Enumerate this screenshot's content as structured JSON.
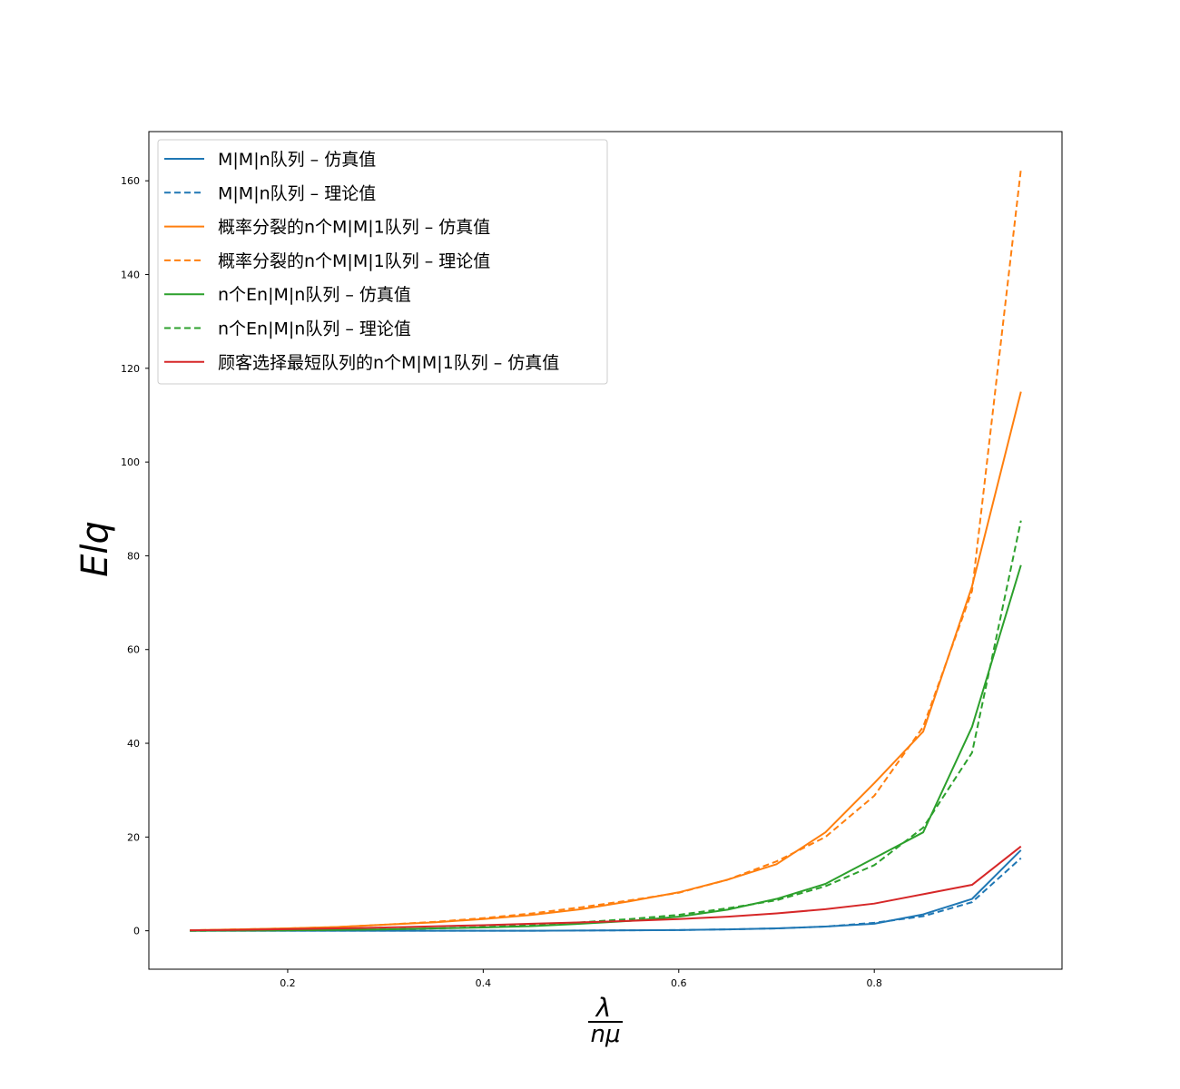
{
  "chart_data": {
    "type": "line",
    "title": "",
    "xlabel": {
      "numerator": "λ",
      "denominator": "nμ"
    },
    "ylabel": "Elq",
    "xlim": [
      0.058,
      0.992
    ],
    "ylim": [
      -8.2,
      170.5
    ],
    "xticks": [
      0.2,
      0.4,
      0.6,
      0.8
    ],
    "xtick_labels": [
      "0.2",
      "0.4",
      "0.6",
      "0.8"
    ],
    "yticks": [
      0,
      20,
      40,
      60,
      80,
      100,
      120,
      140,
      160
    ],
    "ytick_labels": [
      "0",
      "20",
      "40",
      "60",
      "80",
      "100",
      "120",
      "140",
      "160"
    ],
    "grid": false,
    "legend_position": "top-left",
    "x": [
      0.1,
      0.15,
      0.2,
      0.25,
      0.3,
      0.35,
      0.4,
      0.45,
      0.5,
      0.55,
      0.6,
      0.65,
      0.7,
      0.75,
      0.8,
      0.85,
      0.9,
      0.95
    ],
    "series": [
      {
        "name": "M|M|n队列 – 仿真值",
        "color": "#1f77b4",
        "dash": "solid",
        "values": [
          0.0,
          0.0,
          0.0,
          0.0,
          0.0,
          0.0,
          0.0,
          0.0,
          0.05,
          0.1,
          0.15,
          0.3,
          0.5,
          0.9,
          1.5,
          3.5,
          6.8,
          17.2
        ]
      },
      {
        "name": "M|M|n队列 – 理论值",
        "color": "#1f77b4",
        "dash": "dashed",
        "values": [
          0.0,
          0.0,
          0.0,
          0.0,
          0.0,
          0.0,
          0.0,
          0.0,
          0.05,
          0.1,
          0.15,
          0.3,
          0.5,
          0.9,
          1.7,
          3.1,
          6.1,
          15.5
        ]
      },
      {
        "name": "概率分裂的n个M|M|1队列 – 仿真值",
        "color": "#ff7f0e",
        "dash": "solid",
        "values": [
          0.1,
          0.3,
          0.5,
          0.8,
          1.3,
          1.8,
          2.5,
          3.4,
          4.6,
          6.3,
          8.2,
          10.9,
          14.2,
          21.0,
          31.5,
          42.5,
          73.5,
          115.0
        ]
      },
      {
        "name": "概率分裂的n个M|M|1队列 – 理论值",
        "color": "#ff7f0e",
        "dash": "dashed",
        "values": [
          0.1,
          0.3,
          0.5,
          0.8,
          1.3,
          1.9,
          2.7,
          3.7,
          5.0,
          6.5,
          8.1,
          10.9,
          14.8,
          20.0,
          28.8,
          43.5,
          72.5,
          162.5
        ]
      },
      {
        "name": "n个En|M|n队列 – 仿真值",
        "color": "#2ca02c",
        "dash": "solid",
        "values": [
          0.0,
          0.05,
          0.1,
          0.2,
          0.3,
          0.5,
          0.7,
          1.0,
          1.5,
          2.1,
          3.0,
          4.5,
          6.8,
          10.0,
          15.5,
          21.0,
          43.5,
          78.0
        ]
      },
      {
        "name": "n个En|M|n队列 – 理论值",
        "color": "#2ca02c",
        "dash": "dashed",
        "values": [
          0.0,
          0.05,
          0.1,
          0.2,
          0.3,
          0.5,
          0.8,
          1.2,
          1.8,
          2.5,
          3.4,
          4.8,
          6.5,
          9.5,
          14.0,
          22.0,
          38.0,
          87.5
        ]
      },
      {
        "name": "顾客选择最短队列的n个M|M|1队列 – 仿真值",
        "color": "#d62728",
        "dash": "solid",
        "values": [
          0.1,
          0.2,
          0.35,
          0.5,
          0.7,
          0.95,
          1.2,
          1.5,
          1.8,
          2.1,
          2.5,
          3.0,
          3.7,
          4.6,
          5.8,
          7.8,
          9.8,
          18.0
        ]
      }
    ]
  }
}
